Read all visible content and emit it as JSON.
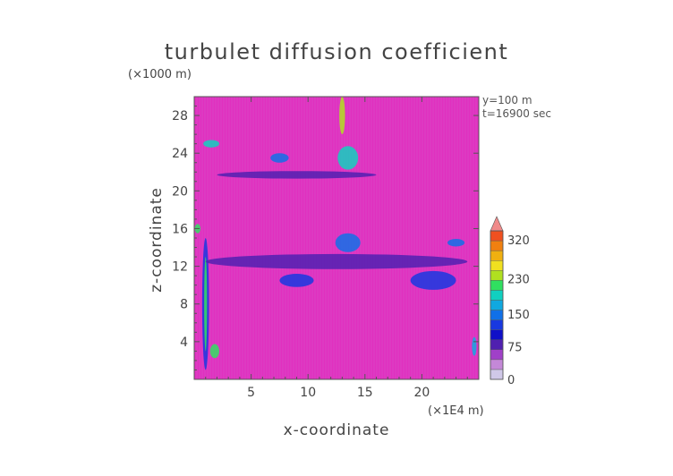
{
  "chart_data": {
    "type": "heatmap",
    "title": "turbulet diffusion coefficient",
    "xlabel": "x-coordinate",
    "ylabel": "z-coordinate",
    "x_unit": "(×1E4 m)",
    "y_unit": "(×1000 m)",
    "xlim": [
      0,
      25
    ],
    "ylim": [
      0,
      30
    ],
    "x_ticks": [
      5,
      10,
      15,
      20
    ],
    "y_ticks": [
      4,
      8,
      12,
      16,
      20,
      24,
      28
    ],
    "annotations": [
      "y=100 m",
      "t=16900 sec"
    ],
    "colorbar": {
      "labels": [
        0,
        75,
        150,
        230,
        320
      ],
      "levels": [
        0,
        25,
        50,
        75,
        100,
        125,
        150,
        170,
        190,
        210,
        230,
        250,
        270,
        290,
        320,
        340
      ],
      "colors": [
        "#d0c8e8",
        "#c488d8",
        "#a040c8",
        "#5020b0",
        "#1010c8",
        "#1838e0",
        "#1070e8",
        "#10a8e0",
        "#10d0c0",
        "#30e060",
        "#b0e020",
        "#f0e020",
        "#f0b010",
        "#f08010",
        "#f05020",
        "#f08a8a"
      ]
    },
    "background_level": "#e030c0",
    "features": [
      {
        "desc": "vertical plume left",
        "x": 1.0,
        "z": 8,
        "w": 0.6,
        "h": 14,
        "level": "#1838e0"
      },
      {
        "desc": "vertical plume core",
        "x": 1.0,
        "z": 8,
        "w": 0.25,
        "h": 10,
        "level": "#30e060"
      },
      {
        "desc": "horizontal band mid",
        "x": 12.5,
        "z": 12.5,
        "w": 23,
        "h": 1.6,
        "level": "#5020b0"
      },
      {
        "desc": "cluster near 13,14",
        "x": 13.5,
        "z": 14.5,
        "w": 2.2,
        "h": 2,
        "level": "#1070e8"
      },
      {
        "desc": "cluster near 13,23",
        "x": 13.5,
        "z": 23.5,
        "w": 1.8,
        "h": 2.5,
        "level": "#10d0c0"
      },
      {
        "desc": "cluster near 7,23",
        "x": 7.5,
        "z": 23.5,
        "w": 1.6,
        "h": 1,
        "level": "#1070e8"
      },
      {
        "desc": "band 21-22",
        "x": 9,
        "z": 21.7,
        "w": 14,
        "h": 0.8,
        "level": "#5020b0"
      },
      {
        "desc": "top vertical streak",
        "x": 13,
        "z": 28,
        "w": 0.5,
        "h": 4,
        "level": "#b0e020"
      },
      {
        "desc": "right mid blobs",
        "x": 21,
        "z": 10.5,
        "w": 4,
        "h": 2,
        "level": "#1838e0"
      },
      {
        "desc": "left mid blobs",
        "x": 9,
        "z": 10.5,
        "w": 3,
        "h": 1.4,
        "level": "#1838e0"
      },
      {
        "desc": "lower left blob",
        "x": 1.8,
        "z": 3,
        "w": 0.8,
        "h": 1.5,
        "level": "#30e060"
      },
      {
        "desc": "lower right edge",
        "x": 24.6,
        "z": 3.5,
        "w": 0.4,
        "h": 2,
        "level": "#10a8e0"
      },
      {
        "desc": "upper left blob",
        "x": 1.5,
        "z": 25,
        "w": 1.4,
        "h": 0.8,
        "level": "#10d0c0"
      },
      {
        "desc": "left edge 16",
        "x": 0.3,
        "z": 16,
        "w": 0.5,
        "h": 1,
        "level": "#30e060"
      },
      {
        "desc": "right edge 14",
        "x": 23,
        "z": 14.5,
        "w": 1.5,
        "h": 0.8,
        "level": "#1070e8"
      }
    ]
  }
}
